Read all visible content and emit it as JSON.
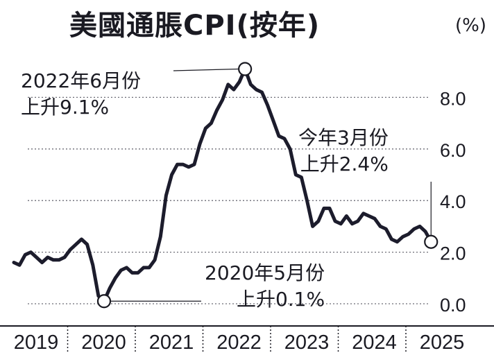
{
  "chart_data": {
    "type": "line",
    "title": "美國通脹CPI(按年)",
    "unit": "(%)",
    "xlabel": "",
    "ylabel": "",
    "x_start_year": 2019,
    "x_start_month": 1,
    "x_end_year": 2025,
    "x_end_month": 3,
    "ylim": [
      0,
      9.2
    ],
    "yticks": [
      "0.0",
      "2.0",
      "4.0",
      "6.0",
      "8.0"
    ],
    "ytick_values": [
      0,
      2,
      4,
      6,
      8
    ],
    "xticks": [
      "2019",
      "2020",
      "2021",
      "2022",
      "2023",
      "2024",
      "2025"
    ],
    "gridlines": "dashed horizontal",
    "series": [
      {
        "name": "CPI YoY",
        "color": "#1c1c2c",
        "values": [
          1.6,
          1.5,
          1.9,
          2.0,
          1.8,
          1.6,
          1.8,
          1.7,
          1.7,
          1.8,
          2.1,
          2.3,
          2.5,
          2.3,
          1.5,
          0.3,
          0.1,
          0.6,
          1.0,
          1.3,
          1.4,
          1.2,
          1.2,
          1.4,
          1.4,
          1.7,
          2.6,
          4.2,
          5.0,
          5.4,
          5.4,
          5.3,
          5.4,
          6.2,
          6.8,
          7.0,
          7.5,
          7.9,
          8.5,
          8.3,
          8.6,
          9.1,
          8.5,
          8.3,
          8.2,
          7.7,
          7.1,
          6.5,
          6.4,
          6.0,
          5.0,
          4.9,
          4.0,
          3.0,
          3.2,
          3.7,
          3.7,
          3.2,
          3.1,
          3.4,
          3.1,
          3.2,
          3.5,
          3.4,
          3.3,
          3.0,
          2.9,
          2.5,
          2.4,
          2.6,
          2.7,
          2.9,
          3.0,
          2.8,
          2.4
        ]
      }
    ],
    "annotations": [
      {
        "name": "peak",
        "year": 2022,
        "month": 6,
        "value": 9.1,
        "line1": "2022年6月份",
        "line2": "上升9.1%"
      },
      {
        "name": "low",
        "year": 2020,
        "month": 5,
        "value": 0.1,
        "line1": "2020年5月份",
        "line2": "上升0.1%"
      },
      {
        "name": "latest",
        "year": 2025,
        "month": 3,
        "value": 2.4,
        "line1": "今年3月份",
        "line2": "上升2.4%"
      }
    ]
  }
}
